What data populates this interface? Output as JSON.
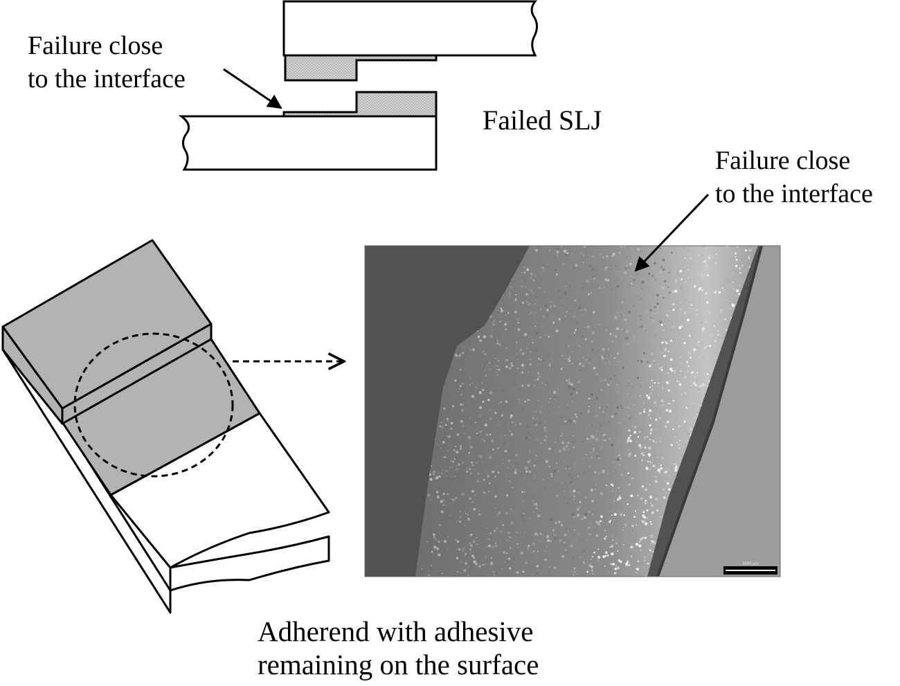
{
  "labels": {
    "slj_failure_line1": "Failure close",
    "slj_failure_line2": "to the interface",
    "failed_slj": "Failed SLJ",
    "micro_failure_line1": "Failure close",
    "micro_failure_line2": "to the interface",
    "adherend_line1": "Adherend with adhesive",
    "adherend_line2": "remaining on the surface"
  },
  "micrograph": {
    "scale_bar_label": "2000 µm"
  },
  "colors": {
    "line": "#000000",
    "adhesive_fill_hatch": "#c8c8c8",
    "adhesive_fill_iso": "#b3b3b3",
    "adherend_fill": "#ffffff",
    "micro_dark": "#505050",
    "micro_grain": "#7a7a7a",
    "micro_bright_edge": "#bdbdbd",
    "micro_right_substrate": "#9a9a9a"
  }
}
